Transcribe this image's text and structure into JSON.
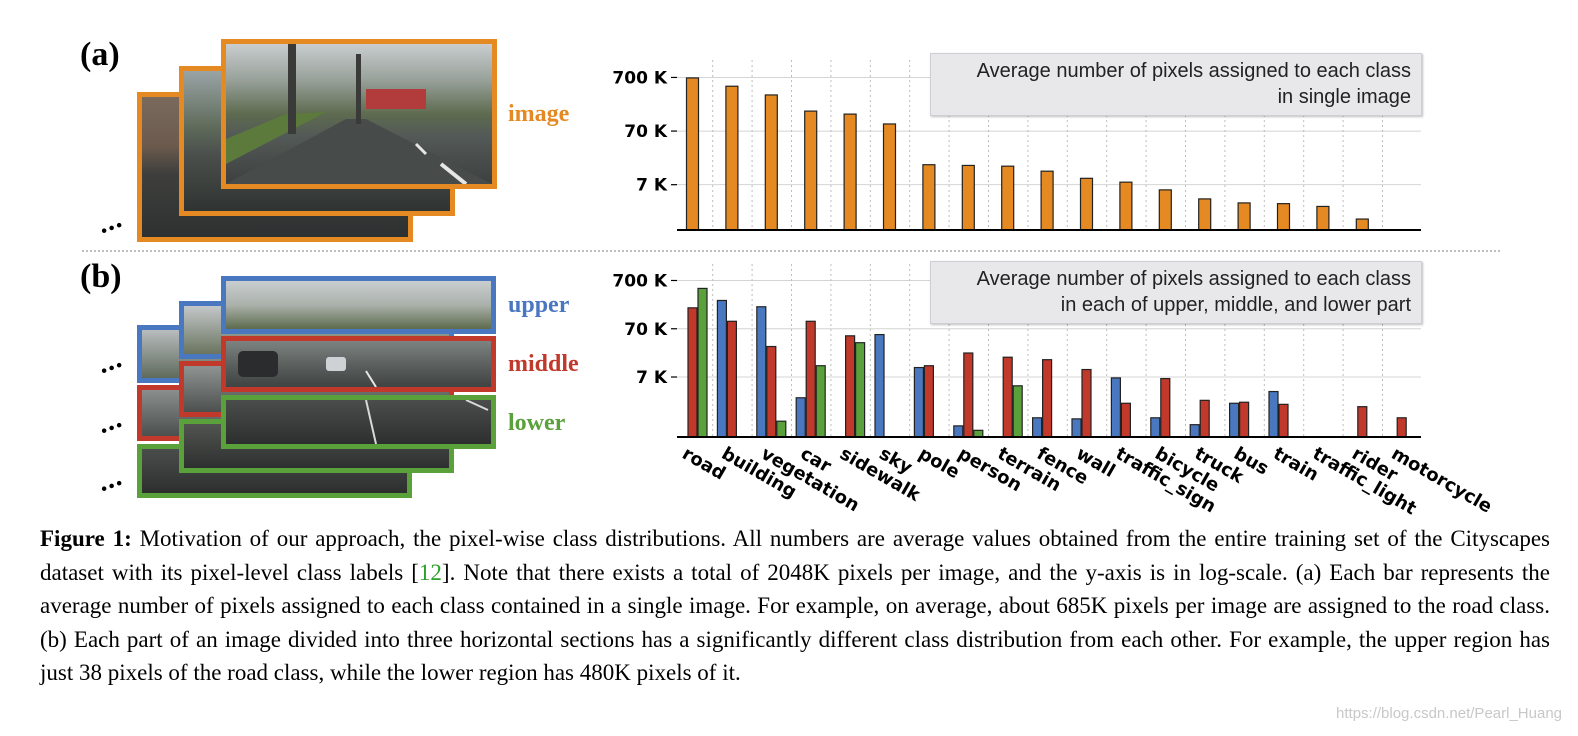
{
  "panel_a": {
    "letter": "(a)",
    "image_label": "image",
    "image_label_color": "#e58a22",
    "legend": [
      "Average number of pixels assigned to each class",
      "in single image"
    ]
  },
  "panel_b": {
    "letter": "(b)",
    "labels": {
      "upper": "upper",
      "middle": "middle",
      "lower": "lower"
    },
    "colors": {
      "upper": "#4a78c0",
      "middle": "#c0392b",
      "lower": "#5aa13c"
    },
    "legend": [
      "Average number of pixels assigned to each class",
      "in each of upper, middle, and lower part"
    ]
  },
  "ellipsis": "...",
  "chart_data": [
    {
      "type": "bar",
      "title": "Average number of pixels assigned to each class in single image",
      "scale": "log",
      "ylim": [
        1000,
        1050000
      ],
      "yticks": [
        7000,
        70000,
        700000
      ],
      "ytick_labels": [
        "7 K",
        "70 K",
        "700 K"
      ],
      "categories": [
        "road",
        "building",
        "vegetation",
        "car",
        "sidewalk",
        "sky",
        "pole",
        "person",
        "terrain",
        "fence",
        "wall",
        "traffic_sign",
        "bicycle",
        "truck",
        "bus",
        "train",
        "traffic_light",
        "rider",
        "motorcycle"
      ],
      "series": [
        {
          "name": "image",
          "color": "#e58a22",
          "values": [
            685000,
            480000,
            330000,
            165000,
            145000,
            95000,
            16500,
            16000,
            15500,
            12500,
            9200,
            7800,
            5600,
            3800,
            3200,
            3100,
            2750,
            1600,
            null
          ]
        }
      ]
    },
    {
      "type": "bar",
      "title": "Average number of pixels assigned to each class in each of upper, middle, and lower part",
      "scale": "log",
      "ylim": [
        400,
        1050000
      ],
      "yticks": [
        7000,
        70000,
        700000
      ],
      "ytick_labels": [
        "7 K",
        "70 K",
        "700 K"
      ],
      "categories": [
        "road",
        "building",
        "vegetation",
        "car",
        "sidewalk",
        "sky",
        "pole",
        "person",
        "terrain",
        "fence",
        "wall",
        "traffic_sign",
        "bicycle",
        "truck",
        "bus",
        "train",
        "traffic_light",
        "rider",
        "motorcycle"
      ],
      "series": [
        {
          "name": "upper",
          "color": "#4a78c0",
          "values": [
            null,
            270000,
            200000,
            2600,
            null,
            53000,
            11000,
            680,
            null,
            1000,
            950,
            6700,
            1000,
            720,
            2000,
            3500,
            null,
            null,
            null
          ]
        },
        {
          "name": "middle",
          "color": "#c0392b",
          "values": [
            190000,
            100000,
            30000,
            100000,
            50000,
            null,
            12000,
            22000,
            18000,
            16000,
            10000,
            2000,
            6500,
            2300,
            2100,
            1900,
            null,
            1700,
            1000
          ]
        },
        {
          "name": "lower",
          "color": "#5aa13c",
          "values": [
            480000,
            null,
            850,
            12000,
            36000,
            null,
            null,
            550,
            4600,
            null,
            null,
            null,
            null,
            null,
            null,
            null,
            null,
            null,
            null
          ]
        }
      ]
    }
  ],
  "caption": {
    "label": "Figure 1:",
    "text_1": " Motivation of our approach, the pixel-wise class distributions. All numbers are average values obtained from the entire training set of the Cityscapes dataset with its pixel-level class labels [",
    "cite": "12",
    "text_2": "]. Note that there exists a total of 2048K pixels per image, and the y-axis is in log-scale. (a) Each bar represents the average number of pixels assigned to each class contained in a single image. For example, on average, about 685K pixels per image are assigned to the road class. (b) Each part of an image divided into three horizontal sections has a significantly different class distribution from each other. For example, the upper region has just 38 pixels of the road class, while the lower region has 480K pixels of it."
  },
  "watermark": "https://blog.csdn.net/Pearl_Huang"
}
